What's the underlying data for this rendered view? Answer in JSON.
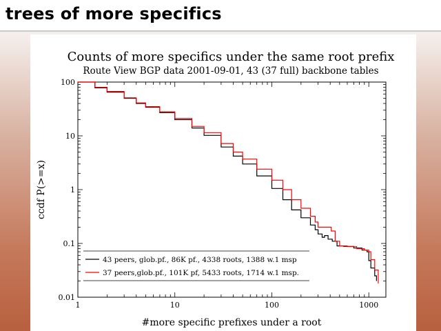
{
  "slide": {
    "title": "trees of more specifics"
  },
  "chart_data": {
    "type": "line",
    "title": "Counts of more specifics under the same root prefix",
    "subtitle": "Route View BGP data 2001-09-01, 43 (37 full) backbone tables",
    "xlabel": "#more specific prefixes under a root",
    "ylabel": "ccdf P(>=x)",
    "x_scale": "log",
    "y_scale": "log",
    "xlim": [
      1,
      1500
    ],
    "ylim": [
      0.01,
      100
    ],
    "x_ticks": [
      1,
      10,
      100,
      1000
    ],
    "x_tick_labels": [
      "1",
      "10",
      "100",
      "1000"
    ],
    "y_ticks": [
      0.01,
      0.1,
      1,
      10,
      100
    ],
    "y_tick_labels": [
      "0.01",
      "0.1",
      "1",
      "10",
      "100"
    ],
    "grid": false,
    "legend_position": "bottom-left",
    "series": [
      {
        "name": "43 peers, glob.pf., 86K pf., 4338 roots, 1388 w.1 msp",
        "color": "#000000",
        "points": [
          [
            1,
            100
          ],
          [
            1.5,
            78
          ],
          [
            2,
            65
          ],
          [
            3,
            50
          ],
          [
            4,
            40
          ],
          [
            5,
            34
          ],
          [
            7,
            27
          ],
          [
            10,
            20
          ],
          [
            15,
            14
          ],
          [
            20,
            10.2
          ],
          [
            30,
            6.2
          ],
          [
            40,
            4.2
          ],
          [
            50,
            3.0
          ],
          [
            70,
            1.8
          ],
          [
            100,
            1.05
          ],
          [
            130,
            0.65
          ],
          [
            160,
            0.42
          ],
          [
            200,
            0.3
          ],
          [
            250,
            0.22
          ],
          [
            280,
            0.18
          ],
          [
            300,
            0.15
          ],
          [
            330,
            0.13
          ],
          [
            350,
            0.14
          ],
          [
            380,
            0.12
          ],
          [
            420,
            0.11
          ],
          [
            470,
            0.09
          ],
          [
            550,
            0.088
          ],
          [
            700,
            0.082
          ],
          [
            850,
            0.075
          ],
          [
            960,
            0.07
          ],
          [
            1000,
            0.048
          ],
          [
            1050,
            0.035
          ],
          [
            1150,
            0.025
          ],
          [
            1200,
            0.02
          ]
        ]
      },
      {
        "name": "37 peers,glob.pf., 101K pf, 5433 roots, 1714 w.1 msp.",
        "color": "#ff0000",
        "points": [
          [
            1,
            100
          ],
          [
            1.5,
            80
          ],
          [
            2,
            67
          ],
          [
            3,
            51
          ],
          [
            4,
            41
          ],
          [
            5,
            35
          ],
          [
            7,
            28
          ],
          [
            10,
            21
          ],
          [
            15,
            15
          ],
          [
            20,
            11.5
          ],
          [
            30,
            7.2
          ],
          [
            40,
            5.0
          ],
          [
            50,
            3.7
          ],
          [
            70,
            2.4
          ],
          [
            100,
            1.5
          ],
          [
            130,
            1.0
          ],
          [
            160,
            0.65
          ],
          [
            200,
            0.45
          ],
          [
            250,
            0.32
          ],
          [
            280,
            0.25
          ],
          [
            300,
            0.2
          ],
          [
            330,
            0.2
          ],
          [
            370,
            0.2
          ],
          [
            410,
            0.17
          ],
          [
            450,
            0.11
          ],
          [
            500,
            0.09
          ],
          [
            600,
            0.087
          ],
          [
            750,
            0.08
          ],
          [
            900,
            0.075
          ],
          [
            1000,
            0.07
          ],
          [
            1050,
            0.05
          ],
          [
            1150,
            0.032
          ],
          [
            1250,
            0.018
          ]
        ]
      }
    ]
  }
}
